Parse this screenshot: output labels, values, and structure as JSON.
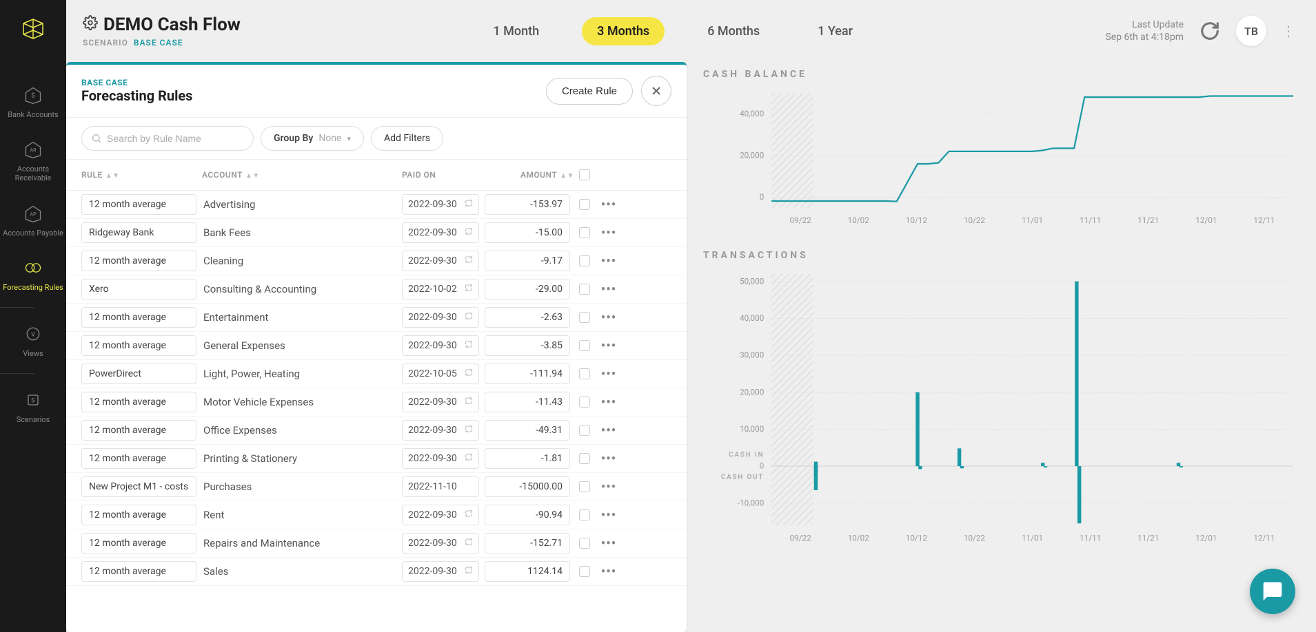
{
  "header": {
    "title": "DEMO Cash Flow",
    "scenario_label": "SCENARIO",
    "scenario_value": "BASE CASE",
    "last_update_label": "Last Update",
    "last_update_value": "Sep 6th at 4:18pm",
    "avatar_initials": "TB"
  },
  "range_tabs": [
    "1 Month",
    "3 Months",
    "6 Months",
    "1 Year"
  ],
  "range_selected": 1,
  "sidebar": {
    "items": [
      {
        "icon": "bank",
        "label": "Bank Accounts"
      },
      {
        "icon": "ar",
        "label": "Accounts Receivable"
      },
      {
        "icon": "ap",
        "label": "Accounts Payable"
      },
      {
        "icon": "rules",
        "label": "Forecasting Rules",
        "active": true
      },
      {
        "icon": "views",
        "label": "Views"
      },
      {
        "icon": "scenarios",
        "label": "Scenarios"
      }
    ]
  },
  "panel": {
    "case_label": "BASE CASE",
    "title": "Forecasting Rules",
    "create_btn": "Create Rule",
    "search_placeholder": "Search by Rule Name",
    "group_by_label": "Group By",
    "group_by_value": "None",
    "add_filters": "Add Filters",
    "columns": {
      "rule": "RULE",
      "account": "ACCOUNT",
      "paid": "PAID ON",
      "amount": "AMOUNT"
    }
  },
  "rules": [
    {
      "rule": "12 month average",
      "account": "Advertising",
      "date": "2022-09-30",
      "recurring": true,
      "amount": "-153.97"
    },
    {
      "rule": "Ridgeway Bank",
      "account": "Bank Fees",
      "date": "2022-09-30",
      "recurring": true,
      "amount": "-15.00"
    },
    {
      "rule": "12 month average",
      "account": "Cleaning",
      "date": "2022-09-30",
      "recurring": true,
      "amount": "-9.17"
    },
    {
      "rule": "Xero",
      "account": "Consulting & Accounting",
      "date": "2022-10-02",
      "recurring": true,
      "amount": "-29.00"
    },
    {
      "rule": "12 month average",
      "account": "Entertainment",
      "date": "2022-09-30",
      "recurring": true,
      "amount": "-2.63"
    },
    {
      "rule": "12 month average",
      "account": "General Expenses",
      "date": "2022-09-30",
      "recurring": true,
      "amount": "-3.85"
    },
    {
      "rule": "PowerDirect",
      "account": "Light, Power, Heating",
      "date": "2022-10-05",
      "recurring": true,
      "amount": "-111.94"
    },
    {
      "rule": "12 month average",
      "account": "Motor Vehicle Expenses",
      "date": "2022-09-30",
      "recurring": true,
      "amount": "-11.43"
    },
    {
      "rule": "12 month average",
      "account": "Office Expenses",
      "date": "2022-09-30",
      "recurring": true,
      "amount": "-49.31"
    },
    {
      "rule": "12 month average",
      "account": "Printing & Stationery",
      "date": "2022-09-30",
      "recurring": true,
      "amount": "-1.81"
    },
    {
      "rule": "New Project M1 - costs",
      "account": "Purchases",
      "date": "2022-11-10",
      "recurring": false,
      "amount": "-15000.00"
    },
    {
      "rule": "12 month average",
      "account": "Rent",
      "date": "2022-09-30",
      "recurring": true,
      "amount": "-90.94"
    },
    {
      "rule": "12 month average",
      "account": "Repairs and Maintenance",
      "date": "2022-09-30",
      "recurring": true,
      "amount": "-152.71"
    },
    {
      "rule": "12 month average",
      "account": "Sales",
      "date": "2022-09-30",
      "recurring": true,
      "amount": "1124.14"
    }
  ],
  "cash_balance_chart": {
    "title": "CASH BALANCE",
    "type": "line",
    "y_ticks": [
      0,
      20000,
      40000
    ],
    "y_labels": [
      "0",
      "20,000",
      "40,000"
    ],
    "x_labels": [
      "09/22",
      "10/02",
      "10/12",
      "10/22",
      "11/01",
      "11/11",
      "11/21",
      "12/01",
      "12/11"
    ],
    "ylim": [
      -5000,
      50000
    ],
    "line_color": "#1a9aa5",
    "grid_color": "#dddddd",
    "background_color": "#efefef",
    "points": [
      [
        0,
        -1800
      ],
      [
        0.22,
        -1800
      ],
      [
        0.24,
        -2000
      ],
      [
        0.28,
        16000
      ],
      [
        0.3,
        16000
      ],
      [
        0.32,
        16500
      ],
      [
        0.34,
        22000
      ],
      [
        0.5,
        22000
      ],
      [
        0.52,
        22500
      ],
      [
        0.54,
        23500
      ],
      [
        0.58,
        23500
      ],
      [
        0.6,
        48000
      ],
      [
        0.82,
        48000
      ],
      [
        0.84,
        48500
      ],
      [
        1.0,
        48500
      ]
    ],
    "hatch_end": 0.08
  },
  "transactions_chart": {
    "title": "TRANSACTIONS",
    "type": "bar",
    "y_ticks": [
      -10000,
      0,
      10000,
      20000,
      30000,
      40000,
      50000
    ],
    "y_labels": [
      "-10,000",
      "0",
      "10,000",
      "20,000",
      "30,000",
      "40,000",
      "50,000"
    ],
    "x_labels": [
      "09/22",
      "10/02",
      "10/12",
      "10/22",
      "11/01",
      "11/11",
      "11/21",
      "12/01",
      "12/11"
    ],
    "cash_in_label": "CASH IN",
    "cash_out_label": "CASH OUT",
    "bar_color": "#1a9aa5",
    "grid_color": "#dddddd",
    "bars": [
      {
        "x": 0.085,
        "v": 1200
      },
      {
        "x": 0.085,
        "v": -1800
      },
      {
        "x": 0.085,
        "v": -4500
      },
      {
        "x": 0.085,
        "v": -6500
      },
      {
        "x": 0.28,
        "v": 20000
      },
      {
        "x": 0.285,
        "v": -800
      },
      {
        "x": 0.36,
        "v": 4800
      },
      {
        "x": 0.365,
        "v": -600
      },
      {
        "x": 0.52,
        "v": 900
      },
      {
        "x": 0.525,
        "v": -300
      },
      {
        "x": 0.585,
        "v": 50000
      },
      {
        "x": 0.59,
        "v": -15500
      },
      {
        "x": 0.78,
        "v": 900
      },
      {
        "x": 0.785,
        "v": -300
      }
    ],
    "hatch_end": 0.08
  },
  "colors": {
    "accent": "#f5e646",
    "teal": "#1a9aa5",
    "sidebar_bg": "#1a1a1a"
  }
}
